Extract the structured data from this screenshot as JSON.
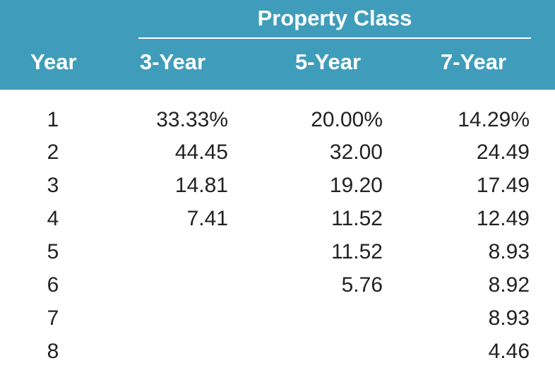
{
  "table": {
    "group_header": "Property Class",
    "columns": [
      "Year",
      "3-Year",
      "5-Year",
      "7-Year"
    ],
    "rows": [
      [
        "1",
        "33.33%",
        "20.00%",
        "14.29%"
      ],
      [
        "2",
        "44.45",
        "32.00",
        "24.49"
      ],
      [
        "3",
        "14.81",
        "19.20",
        "17.49"
      ],
      [
        "4",
        "7.41",
        "11.52",
        "12.49"
      ],
      [
        "5",
        "",
        "11.52",
        "8.93"
      ],
      [
        "6",
        "",
        "5.76",
        "8.92"
      ],
      [
        "7",
        "",
        "",
        "8.93"
      ],
      [
        "8",
        "",
        "",
        "4.46"
      ]
    ]
  },
  "colors": {
    "header_background": "#3f9dbb",
    "header_text": "#ffffff",
    "body_text": "#222222"
  }
}
